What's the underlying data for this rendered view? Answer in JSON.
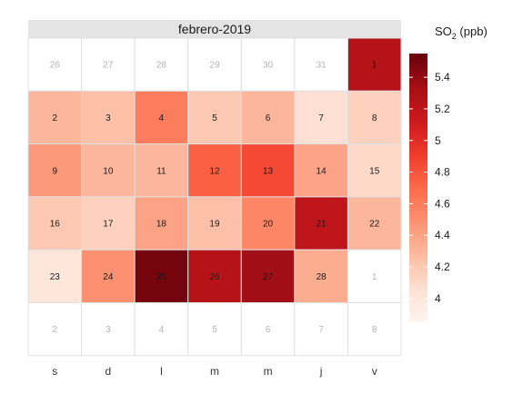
{
  "chart_data": {
    "type": "heatmap",
    "title": "febrero-2019",
    "legend": {
      "title_main": "SO",
      "title_sub": "2",
      "title_unit": " (ppb)",
      "ticks": [
        4,
        4.2,
        4.4,
        4.6,
        4.8,
        5,
        5.2,
        5.4
      ],
      "tick_labels": [
        "4",
        "4.2",
        "4.4",
        "4.6",
        "4.8",
        "5",
        "5.2",
        "5.4"
      ],
      "range": [
        3.85,
        5.55
      ],
      "placement": "right"
    },
    "colors": {
      "low": "#fff5f0",
      "high": "#67000d",
      "empty": "#ffffff",
      "grid": "#e0e0e0",
      "strip": "#e4e4e4",
      "in_month_text": "#1a1a1a",
      "out_month_text": "#b3b3b3"
    },
    "weekdays": [
      "s",
      "d",
      "l",
      "m",
      "m",
      "j",
      "v"
    ],
    "weeks": [
      [
        {
          "day": "26",
          "in_month": false,
          "value": null
        },
        {
          "day": "27",
          "in_month": false,
          "value": null
        },
        {
          "day": "28",
          "in_month": false,
          "value": null
        },
        {
          "day": "29",
          "in_month": false,
          "value": null
        },
        {
          "day": "30",
          "in_month": false,
          "value": null
        },
        {
          "day": "31",
          "in_month": false,
          "value": null
        },
        {
          "day": "1",
          "in_month": true,
          "value": 5.25
        }
      ],
      [
        {
          "day": "2",
          "in_month": true,
          "value": 4.3
        },
        {
          "day": "3",
          "in_month": true,
          "value": 4.25
        },
        {
          "day": "4",
          "in_month": true,
          "value": 4.6
        },
        {
          "day": "5",
          "in_month": true,
          "value": 4.2
        },
        {
          "day": "6",
          "in_month": true,
          "value": 4.3
        },
        {
          "day": "7",
          "in_month": true,
          "value": 4.05
        },
        {
          "day": "8",
          "in_month": true,
          "value": 4.15
        }
      ],
      [
        {
          "day": "9",
          "in_month": true,
          "value": 4.45
        },
        {
          "day": "10",
          "in_month": true,
          "value": 4.3
        },
        {
          "day": "11",
          "in_month": true,
          "value": 4.3
        },
        {
          "day": "12",
          "in_month": true,
          "value": 4.75
        },
        {
          "day": "13",
          "in_month": true,
          "value": 4.85
        },
        {
          "day": "14",
          "in_month": true,
          "value": 4.4
        },
        {
          "day": "15",
          "in_month": true,
          "value": 4.1
        }
      ],
      [
        {
          "day": "16",
          "in_month": true,
          "value": 4.2
        },
        {
          "day": "17",
          "in_month": true,
          "value": 4.15
        },
        {
          "day": "18",
          "in_month": true,
          "value": 4.4
        },
        {
          "day": "19",
          "in_month": true,
          "value": 4.25
        },
        {
          "day": "20",
          "in_month": true,
          "value": 4.55
        },
        {
          "day": "21",
          "in_month": true,
          "value": 5.2
        },
        {
          "day": "22",
          "in_month": true,
          "value": 4.3
        }
      ],
      [
        {
          "day": "23",
          "in_month": true,
          "value": 4.0
        },
        {
          "day": "24",
          "in_month": true,
          "value": 4.5
        },
        {
          "day": "25",
          "in_month": true,
          "value": 5.5
        },
        {
          "day": "26",
          "in_month": true,
          "value": 5.25
        },
        {
          "day": "27",
          "in_month": true,
          "value": 5.35
        },
        {
          "day": "28",
          "in_month": true,
          "value": 4.35
        },
        {
          "day": "1",
          "in_month": false,
          "value": null
        }
      ],
      [
        {
          "day": "2",
          "in_month": false,
          "value": null
        },
        {
          "day": "3",
          "in_month": false,
          "value": null
        },
        {
          "day": "4",
          "in_month": false,
          "value": null
        },
        {
          "day": "5",
          "in_month": false,
          "value": null
        },
        {
          "day": "6",
          "in_month": false,
          "value": null
        },
        {
          "day": "7",
          "in_month": false,
          "value": null
        },
        {
          "day": "8",
          "in_month": false,
          "value": null
        }
      ]
    ]
  }
}
